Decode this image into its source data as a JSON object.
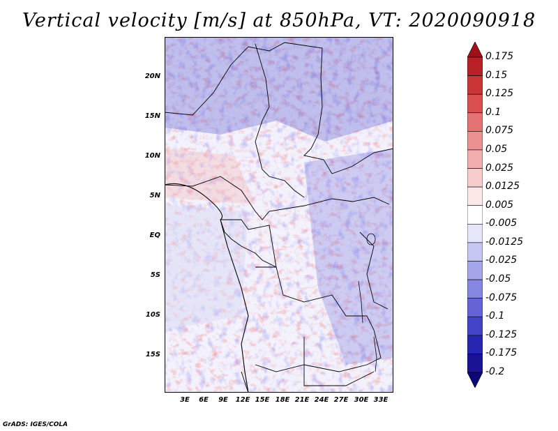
{
  "title": "Vertical velocity [m/s] at 850hPa, VT: 2020090918",
  "credit": "GrADS: IGES/COLA",
  "map": {
    "variable": "vertical velocity",
    "level": "850hPa",
    "valid_time": "2020090918",
    "lat_labels": [
      "20N",
      "15N",
      "10N",
      "5N",
      "EQ",
      "5S",
      "10S",
      "15S"
    ],
    "lon_labels": [
      "3E",
      "6E",
      "9E",
      "12E",
      "15E",
      "18E",
      "21E",
      "24E",
      "27E",
      "30E",
      "33E"
    ]
  },
  "colorbar": {
    "levels": [
      "0.175",
      "0.15",
      "0.125",
      "0.1",
      "0.075",
      "0.05",
      "0.025",
      "0.0125",
      "0.005",
      "-0.005",
      "-0.0125",
      "-0.025",
      "-0.05",
      "-0.075",
      "-0.1",
      "-0.125",
      "-0.175",
      "-0.2"
    ],
    "colors": [
      "#a0101a",
      "#b92025",
      "#cc3535",
      "#dc4f4f",
      "#e47272",
      "#ec9090",
      "#f2aeae",
      "#f8cccc",
      "#fde8e8",
      "#ffffff",
      "#e6e6fb",
      "#c6c6f3",
      "#a6a6ec",
      "#8585e2",
      "#6464d6",
      "#4343c7",
      "#2626b0",
      "#1a1396",
      "#0c0878"
    ]
  }
}
